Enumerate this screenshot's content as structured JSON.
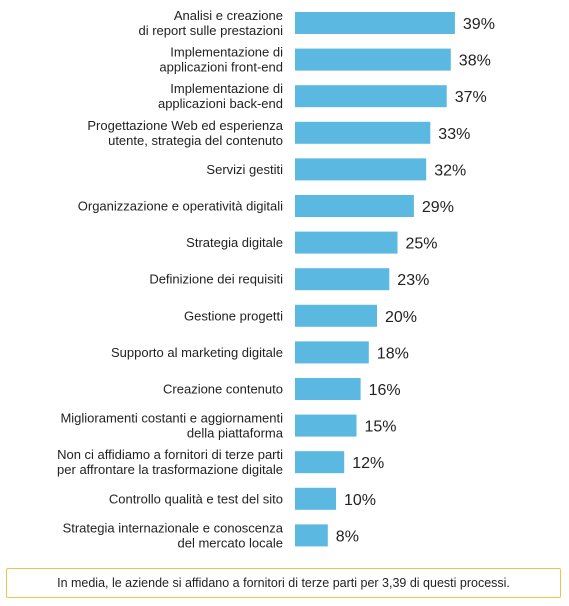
{
  "chart_data": {
    "type": "bar",
    "orientation": "horizontal",
    "categories": [
      [
        "Analisi e creazione",
        "di report sulle prestazioni"
      ],
      [
        "Implementazione di",
        "applicazioni front-end"
      ],
      [
        "Implementazione di",
        "applicazioni back-end"
      ],
      [
        "Progettazione Web ed esperienza",
        "utente, strategia del contenuto"
      ],
      [
        "Servizi gestiti"
      ],
      [
        "Organizzazione e operatività digitali"
      ],
      [
        "Strategia digitale"
      ],
      [
        "Definizione dei requisiti"
      ],
      [
        "Gestione progetti"
      ],
      [
        "Supporto al marketing digitale"
      ],
      [
        "Creazione contenuto"
      ],
      [
        "Miglioramenti costanti e aggiornamenti",
        "della piattaforma"
      ],
      [
        "Non ci affidiamo a fornitori di terze parti",
        "per affrontare la trasformazione digitale"
      ],
      [
        "Controllo qualità e test del sito"
      ],
      [
        "Strategia internazionale e conoscenza",
        "del mercato locale"
      ]
    ],
    "values": [
      39,
      38,
      37,
      33,
      32,
      29,
      25,
      23,
      20,
      18,
      16,
      15,
      12,
      10,
      8
    ],
    "value_labels": [
      "39%",
      "38%",
      "37%",
      "33%",
      "32%",
      "29%",
      "25%",
      "23%",
      "20%",
      "18%",
      "16%",
      "15%",
      "12%",
      "10%",
      "8%"
    ],
    "unit": "%",
    "bar_color": "#5bb8e0",
    "grid": false,
    "legend": "none"
  },
  "footnote": {
    "text": "In media, le aziende si affidano a fornitori di terze parti per 3,39 di questi processi.",
    "border_color": "#f0c24a"
  }
}
